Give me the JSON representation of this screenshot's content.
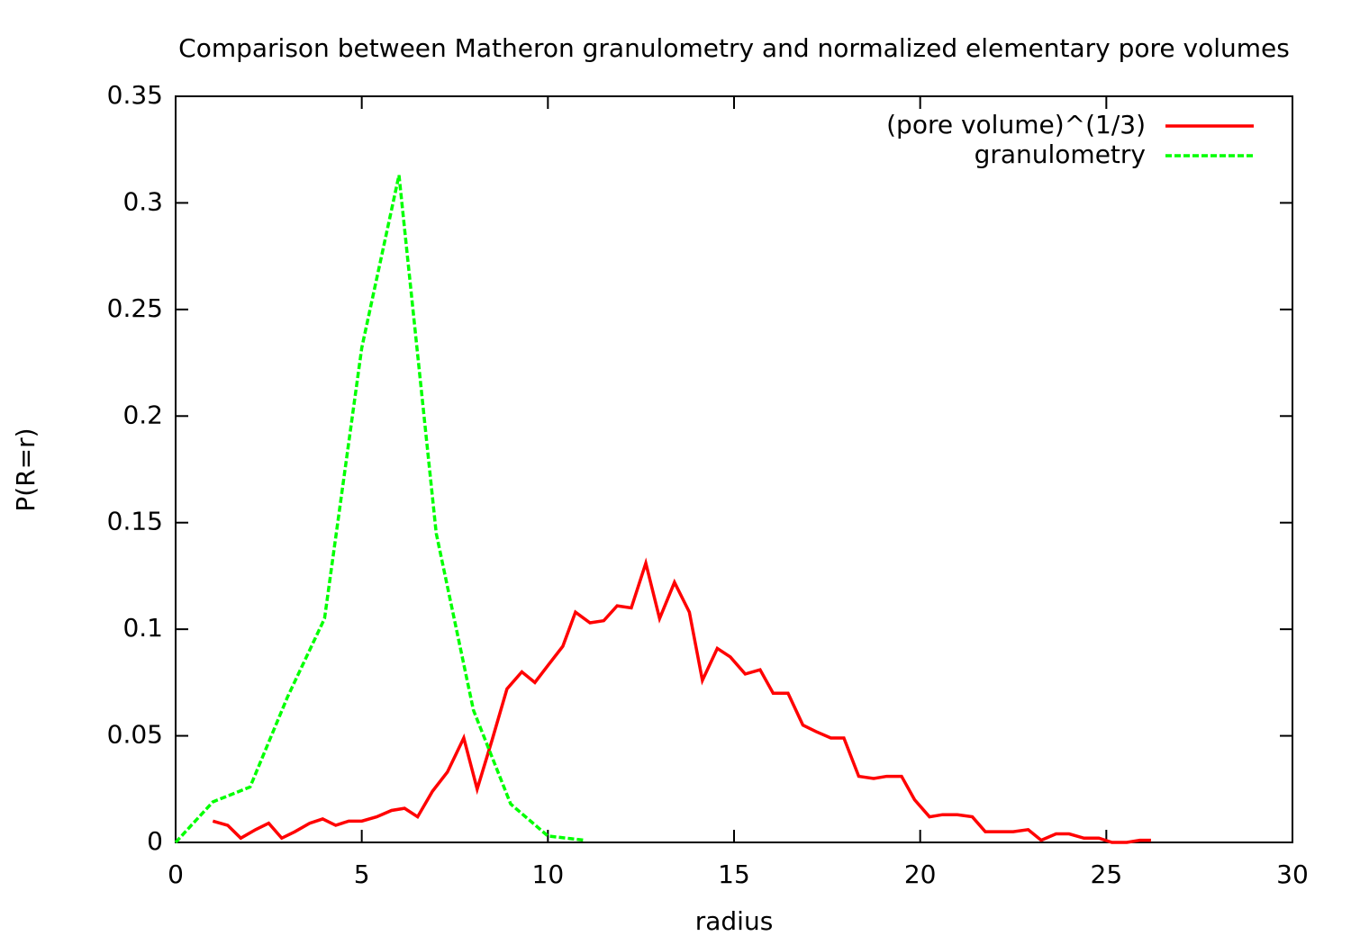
{
  "chart_data": {
    "type": "line",
    "title": "Comparison between Matheron granulometry and normalized elementary pore volumes",
    "xlabel": "radius",
    "ylabel": "P(R=r)",
    "xlim": [
      0,
      30
    ],
    "xticks": [
      0,
      5,
      10,
      15,
      20,
      25,
      30
    ],
    "ylim": [
      0,
      0.35
    ],
    "yticks": [
      0,
      0.05,
      0.1,
      0.15,
      0.2,
      0.25,
      0.3,
      0.35
    ],
    "legend": "top-right",
    "series": [
      {
        "name": "(pore volume)^(1/3)",
        "color": "#ff0000",
        "dash": false,
        "x": [
          1.0,
          1.4,
          1.75,
          2.15,
          2.5,
          2.85,
          3.2,
          3.6,
          3.95,
          4.3,
          4.65,
          5.0,
          5.4,
          5.8,
          6.15,
          6.5,
          6.9,
          7.3,
          7.74,
          8.1,
          8.5,
          8.9,
          9.3,
          9.65,
          10.0,
          10.4,
          10.74,
          11.13,
          11.5,
          11.86,
          12.24,
          12.63,
          13.0,
          13.4,
          13.8,
          14.15,
          14.55,
          14.9,
          15.3,
          15.7,
          16.05,
          16.45,
          16.85,
          17.2,
          17.6,
          17.95,
          18.35,
          18.75,
          19.1,
          19.5,
          19.85,
          20.25,
          20.6,
          21.0,
          21.4,
          21.75,
          22.15,
          22.5,
          22.9,
          23.25,
          23.65,
          24.0,
          24.4,
          24.8,
          25.15,
          25.55,
          25.9,
          26.2
        ],
        "values": [
          0.01,
          0.008,
          0.002,
          0.006,
          0.009,
          0.002,
          0.005,
          0.009,
          0.011,
          0.008,
          0.01,
          0.01,
          0.012,
          0.015,
          0.016,
          0.012,
          0.024,
          0.033,
          0.049,
          0.025,
          0.048,
          0.072,
          0.08,
          0.075,
          0.083,
          0.092,
          0.108,
          0.103,
          0.104,
          0.111,
          0.11,
          0.131,
          0.105,
          0.122,
          0.108,
          0.076,
          0.091,
          0.087,
          0.079,
          0.081,
          0.07,
          0.07,
          0.055,
          0.052,
          0.049,
          0.049,
          0.031,
          0.03,
          0.031,
          0.031,
          0.02,
          0.012,
          0.013,
          0.013,
          0.012,
          0.005,
          0.005,
          0.005,
          0.006,
          0.001,
          0.004,
          0.004,
          0.002,
          0.002,
          0,
          0,
          0.001,
          0.001
        ]
      },
      {
        "name": "granulometry",
        "color": "#00ff00",
        "dash": true,
        "x": [
          0,
          1,
          2,
          3,
          4,
          5,
          6,
          7,
          8,
          9,
          10,
          11
        ],
        "values": [
          0,
          0.019,
          0.026,
          0.068,
          0.105,
          0.232,
          0.313,
          0.145,
          0.062,
          0.018,
          0.003,
          0.001
        ]
      }
    ]
  }
}
